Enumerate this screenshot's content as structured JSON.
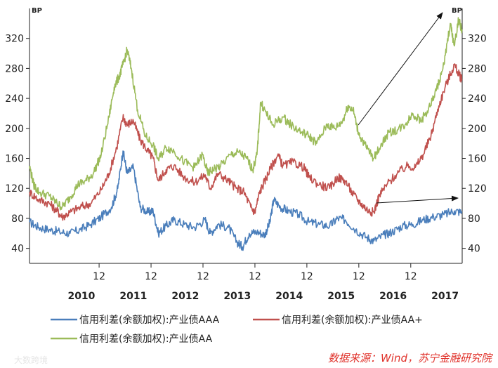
{
  "chart_data": {
    "type": "line",
    "y_unit": "BP",
    "ylim": [
      20,
      360
    ],
    "yticks": [
      40,
      80,
      120,
      160,
      200,
      240,
      280,
      320
    ],
    "xlim": [
      2009.62,
      2017.95
    ],
    "x_month_ticks": [
      {
        "x": 2010.96,
        "label": "12"
      },
      {
        "x": 2011.96,
        "label": "12"
      },
      {
        "x": 2012.96,
        "label": "12"
      },
      {
        "x": 2013.96,
        "label": "12"
      },
      {
        "x": 2014.96,
        "label": "12"
      },
      {
        "x": 2015.96,
        "label": "12"
      },
      {
        "x": 2016.96,
        "label": "12"
      }
    ],
    "x_year_labels": [
      {
        "x": 2010.62,
        "label": "2010"
      },
      {
        "x": 2011.62,
        "label": "2011"
      },
      {
        "x": 2012.62,
        "label": "2012"
      },
      {
        "x": 2013.62,
        "label": "2013"
      },
      {
        "x": 2014.62,
        "label": "2014"
      },
      {
        "x": 2015.62,
        "label": "2015"
      },
      {
        "x": 2016.62,
        "label": "2016"
      },
      {
        "x": 2017.62,
        "label": "2017"
      }
    ],
    "grid": false,
    "legend_position": "bottom",
    "series": [
      {
        "name": "信用利差(余额加权):产业债AAA",
        "color": "#4a7ebb",
        "points": [
          [
            2009.62,
            75
          ],
          [
            2009.8,
            68
          ],
          [
            2010.0,
            65
          ],
          [
            2010.2,
            62
          ],
          [
            2010.4,
            60
          ],
          [
            2010.6,
            65
          ],
          [
            2010.8,
            72
          ],
          [
            2011.0,
            82
          ],
          [
            2011.2,
            95
          ],
          [
            2011.32,
            120
          ],
          [
            2011.42,
            170
          ],
          [
            2011.5,
            140
          ],
          [
            2011.62,
            148
          ],
          [
            2011.75,
            95
          ],
          [
            2011.9,
            88
          ],
          [
            2012.0,
            90
          ],
          [
            2012.1,
            60
          ],
          [
            2012.25,
            70
          ],
          [
            2012.4,
            78
          ],
          [
            2012.6,
            72
          ],
          [
            2012.8,
            68
          ],
          [
            2013.0,
            78
          ],
          [
            2013.1,
            60
          ],
          [
            2013.25,
            72
          ],
          [
            2013.45,
            68
          ],
          [
            2013.62,
            48
          ],
          [
            2013.72,
            42
          ],
          [
            2013.85,
            60
          ],
          [
            2014.0,
            62
          ],
          [
            2014.15,
            58
          ],
          [
            2014.25,
            75
          ],
          [
            2014.32,
            105
          ],
          [
            2014.45,
            95
          ],
          [
            2014.6,
            90
          ],
          [
            2014.8,
            85
          ],
          [
            2015.0,
            75
          ],
          [
            2015.2,
            72
          ],
          [
            2015.4,
            70
          ],
          [
            2015.55,
            80
          ],
          [
            2015.7,
            78
          ],
          [
            2015.9,
            65
          ],
          [
            2016.1,
            55
          ],
          [
            2016.25,
            50
          ],
          [
            2016.45,
            58
          ],
          [
            2016.6,
            62
          ],
          [
            2016.8,
            70
          ],
          [
            2017.0,
            72
          ],
          [
            2017.2,
            78
          ],
          [
            2017.4,
            82
          ],
          [
            2017.6,
            85
          ],
          [
            2017.8,
            90
          ],
          [
            2017.95,
            88
          ]
        ]
      },
      {
        "name": "信用利差(余额加权):产业债AA+",
        "color": "#c0504d",
        "points": [
          [
            2009.62,
            115
          ],
          [
            2009.8,
            105
          ],
          [
            2010.0,
            100
          ],
          [
            2010.15,
            90
          ],
          [
            2010.25,
            82
          ],
          [
            2010.4,
            88
          ],
          [
            2010.6,
            95
          ],
          [
            2010.8,
            100
          ],
          [
            2011.0,
            118
          ],
          [
            2011.15,
            140
          ],
          [
            2011.3,
            175
          ],
          [
            2011.42,
            215
          ],
          [
            2011.5,
            205
          ],
          [
            2011.62,
            210
          ],
          [
            2011.75,
            185
          ],
          [
            2011.9,
            170
          ],
          [
            2012.0,
            160
          ],
          [
            2012.1,
            130
          ],
          [
            2012.25,
            145
          ],
          [
            2012.4,
            150
          ],
          [
            2012.6,
            135
          ],
          [
            2012.8,
            128
          ],
          [
            2013.0,
            138
          ],
          [
            2013.1,
            120
          ],
          [
            2013.25,
            140
          ],
          [
            2013.45,
            130
          ],
          [
            2013.6,
            120
          ],
          [
            2013.75,
            115
          ],
          [
            2013.88,
            95
          ],
          [
            2013.96,
            88
          ],
          [
            2014.05,
            115
          ],
          [
            2014.15,
            130
          ],
          [
            2014.25,
            145
          ],
          [
            2014.4,
            165
          ],
          [
            2014.5,
            150
          ],
          [
            2014.7,
            155
          ],
          [
            2014.9,
            148
          ],
          [
            2015.0,
            135
          ],
          [
            2015.2,
            125
          ],
          [
            2015.4,
            120
          ],
          [
            2015.55,
            135
          ],
          [
            2015.7,
            130
          ],
          [
            2015.85,
            112
          ],
          [
            2016.0,
            100
          ],
          [
            2016.15,
            90
          ],
          [
            2016.25,
            88
          ],
          [
            2016.35,
            110
          ],
          [
            2016.5,
            125
          ],
          [
            2016.7,
            140
          ],
          [
            2016.9,
            150
          ],
          [
            2017.05,
            148
          ],
          [
            2017.2,
            165
          ],
          [
            2017.35,
            190
          ],
          [
            2017.5,
            230
          ],
          [
            2017.65,
            260
          ],
          [
            2017.8,
            285
          ],
          [
            2017.9,
            270
          ],
          [
            2017.95,
            265
          ]
        ]
      },
      {
        "name": "信用利差(余额加权):产业债AA",
        "color": "#9bbb59",
        "points": [
          [
            2009.62,
            150
          ],
          [
            2009.7,
            125
          ],
          [
            2009.8,
            115
          ],
          [
            2010.0,
            110
          ],
          [
            2010.15,
            100
          ],
          [
            2010.25,
            95
          ],
          [
            2010.4,
            108
          ],
          [
            2010.55,
            125
          ],
          [
            2010.7,
            130
          ],
          [
            2010.85,
            140
          ],
          [
            2011.0,
            165
          ],
          [
            2011.15,
            215
          ],
          [
            2011.25,
            255
          ],
          [
            2011.35,
            270
          ],
          [
            2011.42,
            285
          ],
          [
            2011.5,
            305
          ],
          [
            2011.58,
            280
          ],
          [
            2011.7,
            225
          ],
          [
            2011.85,
            190
          ],
          [
            2012.0,
            178
          ],
          [
            2012.1,
            158
          ],
          [
            2012.25,
            175
          ],
          [
            2012.4,
            170
          ],
          [
            2012.6,
            155
          ],
          [
            2012.8,
            148
          ],
          [
            2012.95,
            165
          ],
          [
            2013.05,
            140
          ],
          [
            2013.15,
            145
          ],
          [
            2013.3,
            150
          ],
          [
            2013.5,
            165
          ],
          [
            2013.65,
            168
          ],
          [
            2013.8,
            160
          ],
          [
            2013.92,
            145
          ],
          [
            2014.0,
            165
          ],
          [
            2014.07,
            235
          ],
          [
            2014.18,
            220
          ],
          [
            2014.3,
            205
          ],
          [
            2014.5,
            215
          ],
          [
            2014.65,
            205
          ],
          [
            2014.85,
            195
          ],
          [
            2015.0,
            190
          ],
          [
            2015.15,
            180
          ],
          [
            2015.35,
            205
          ],
          [
            2015.5,
            200
          ],
          [
            2015.65,
            210
          ],
          [
            2015.75,
            230
          ],
          [
            2015.85,
            225
          ],
          [
            2015.95,
            195
          ],
          [
            2016.1,
            175
          ],
          [
            2016.25,
            160
          ],
          [
            2016.4,
            180
          ],
          [
            2016.55,
            195
          ],
          [
            2016.7,
            198
          ],
          [
            2016.85,
            205
          ],
          [
            2017.0,
            220
          ],
          [
            2017.15,
            210
          ],
          [
            2017.3,
            225
          ],
          [
            2017.45,
            250
          ],
          [
            2017.6,
            285
          ],
          [
            2017.72,
            340
          ],
          [
            2017.8,
            310
          ],
          [
            2017.88,
            345
          ],
          [
            2017.95,
            330
          ]
        ]
      }
    ]
  },
  "source_note": "数据来源：Wind，苏宁金融研究院",
  "watermark": "大数跨境"
}
